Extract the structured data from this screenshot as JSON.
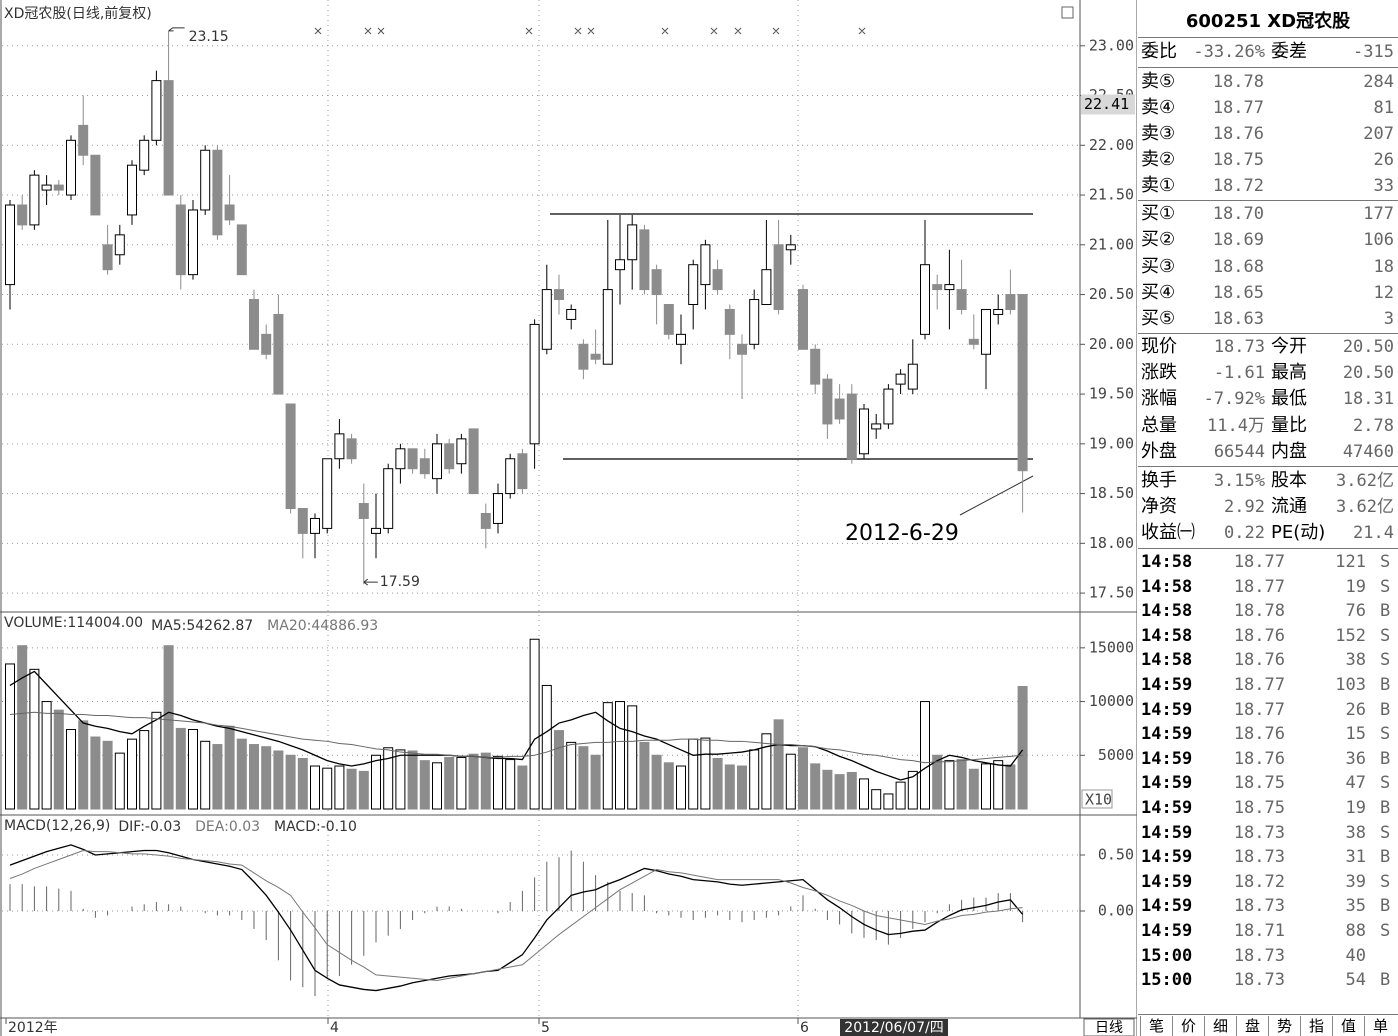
{
  "chart_data": [
    {
      "type": "candlestick",
      "title": "XD冠农股(日线,前复权)",
      "open": [
        20.6,
        21.4,
        21.2,
        21.55,
        21.6,
        21.5,
        22.2,
        21.9,
        21.0,
        20.9,
        21.3,
        21.75,
        22.05,
        22.65,
        21.4,
        20.7,
        21.35,
        21.95,
        21.4,
        21.2,
        20.45,
        20.1,
        20.3,
        19.4,
        18.35,
        18.1,
        18.15,
        18.85,
        19.05,
        18.4,
        18.1,
        18.15,
        18.75,
        18.95,
        18.85,
        18.65,
        19.0,
        18.8,
        19.15,
        18.3,
        18.2,
        18.5,
        18.9,
        19.0,
        19.95,
        20.55,
        20.25,
        20.0,
        19.9,
        19.8,
        20.75,
        20.85,
        21.15,
        20.75,
        20.4,
        20.0,
        20.4,
        20.6,
        20.75,
        20.35,
        20.0,
        20.0,
        20.4,
        21.0,
        20.95,
        20.55,
        19.95,
        19.65,
        19.45,
        19.5,
        18.9,
        19.15,
        19.2,
        19.6,
        19.55,
        20.1,
        20.6,
        20.55,
        20.55,
        20.05,
        19.9,
        20.3,
        20.5,
        20.5
      ],
      "high": [
        21.45,
        21.5,
        21.75,
        21.7,
        21.65,
        22.1,
        22.5,
        21.9,
        21.2,
        21.2,
        21.85,
        22.1,
        22.75,
        23.15,
        21.5,
        21.45,
        22.0,
        22.0,
        21.7,
        21.2,
        20.55,
        20.2,
        20.5,
        19.4,
        18.35,
        18.3,
        18.85,
        19.25,
        19.1,
        18.6,
        18.5,
        18.8,
        19.0,
        18.95,
        18.95,
        19.1,
        19.05,
        19.1,
        19.15,
        18.4,
        18.6,
        18.9,
        18.95,
        20.25,
        20.8,
        20.7,
        20.4,
        20.05,
        20.15,
        21.25,
        21.3,
        21.3,
        21.2,
        20.8,
        20.4,
        20.3,
        20.85,
        21.05,
        20.85,
        20.4,
        20.1,
        20.55,
        21.25,
        21.25,
        21.1,
        20.6,
        20.0,
        19.7,
        19.6,
        19.6,
        19.4,
        19.3,
        19.6,
        19.75,
        20.05,
        21.25,
        20.7,
        20.95,
        20.85,
        20.3,
        20.35,
        20.5,
        20.75,
        20.5
      ],
      "low": [
        20.35,
        21.15,
        21.15,
        21.4,
        21.5,
        21.45,
        21.8,
        21.3,
        20.7,
        20.8,
        21.2,
        21.7,
        22.0,
        21.5,
        20.55,
        20.65,
        21.3,
        21.05,
        21.2,
        20.7,
        19.95,
        19.85,
        19.5,
        18.3,
        17.85,
        17.85,
        18.1,
        18.75,
        18.8,
        17.59,
        17.85,
        18.1,
        18.6,
        18.7,
        18.65,
        18.5,
        18.7,
        18.7,
        18.5,
        17.95,
        18.1,
        18.45,
        18.5,
        18.75,
        19.9,
        20.3,
        20.15,
        19.65,
        19.8,
        19.8,
        20.4,
        20.55,
        20.5,
        20.2,
        20.05,
        19.8,
        20.15,
        20.35,
        20.5,
        19.85,
        19.45,
        19.95,
        20.4,
        20.3,
        20.8,
        19.95,
        19.5,
        19.05,
        19.2,
        18.8,
        18.85,
        19.05,
        19.15,
        19.5,
        19.5,
        20.05,
        20.35,
        20.15,
        20.3,
        19.95,
        19.55,
        20.2,
        20.3,
        18.31
      ],
      "close": [
        21.4,
        21.2,
        21.7,
        21.6,
        21.55,
        22.05,
        21.9,
        21.3,
        20.75,
        21.1,
        21.8,
        22.05,
        22.65,
        21.5,
        20.7,
        21.35,
        21.95,
        21.1,
        21.25,
        20.7,
        19.95,
        19.9,
        19.5,
        18.35,
        18.1,
        18.25,
        18.85,
        19.1,
        18.85,
        18.25,
        18.15,
        18.75,
        18.95,
        18.75,
        18.7,
        19.0,
        18.75,
        19.05,
        18.5,
        18.15,
        18.5,
        18.85,
        18.55,
        20.2,
        20.55,
        20.45,
        20.35,
        19.75,
        19.85,
        20.55,
        20.85,
        21.2,
        20.55,
        20.5,
        20.1,
        20.1,
        20.8,
        21.0,
        20.55,
        20.1,
        19.9,
        20.45,
        20.75,
        20.35,
        21.0,
        19.95,
        19.6,
        19.2,
        19.25,
        18.85,
        19.35,
        19.2,
        19.55,
        19.7,
        19.8,
        20.8,
        20.55,
        20.6,
        20.35,
        20.0,
        20.35,
        20.35,
        20.35,
        18.73
      ],
      "up_color": "#ffffff",
      "down_color": "#8c8c8c",
      "annotations": [
        23.15,
        17.59
      ],
      "note": "2012-6-29",
      "cursor": 22.41,
      "ylim": [
        17.31,
        23.46
      ],
      "yticks": [
        {
          "value": 17.5,
          "label": "17.50"
        },
        {
          "value": 18,
          "label": "18.00"
        },
        {
          "value": 18.5,
          "label": "18.50"
        },
        {
          "value": 19,
          "label": "19.00"
        },
        {
          "value": 19.5,
          "label": "19.50"
        },
        {
          "value": 20,
          "label": "20.00"
        },
        {
          "value": 20.5,
          "label": "20.50"
        },
        {
          "value": 21,
          "label": "21.00"
        },
        {
          "value": 21.5,
          "label": "21.50"
        },
        {
          "value": 22,
          "label": "22.00"
        },
        {
          "value": 22.5,
          "label": "22.50"
        },
        {
          "value": 23,
          "label": "23.00"
        }
      ],
      "grid": true,
      "x_labels": [
        "2012年",
        "4",
        "5",
        "6"
      ],
      "cursor_date": "2012/06/07/四",
      "period": "日线"
    },
    {
      "type": "bar",
      "title": "VOLUME:114004.00",
      "unit_label": "X10",
      "values": [
        13500,
        15200,
        13000,
        10000,
        9200,
        7400,
        8200,
        6700,
        6300,
        5200,
        6500,
        7300,
        9000,
        15200,
        7500,
        7400,
        6300,
        6000,
        7700,
        6500,
        6000,
        5800,
        5400,
        5000,
        4700,
        4000,
        3800,
        4000,
        3700,
        3500,
        5000,
        5700,
        5500,
        5400,
        4500,
        4300,
        4800,
        4800,
        5100,
        5200,
        4900,
        4600,
        4000,
        15800,
        11500,
        7300,
        6200,
        5800,
        5000,
        9900,
        10000,
        9600,
        6200,
        5000,
        4300,
        4000,
        6500,
        6600,
        4700,
        4100,
        4000,
        5500,
        7000,
        8300,
        5100,
        5700,
        4200,
        3600,
        3200,
        3400,
        2800,
        1800,
        1400,
        2500,
        3500,
        10000,
        5000,
        4500,
        4600,
        3700,
        4200,
        4500,
        4100,
        11400
      ],
      "series": [
        {
          "name": "MA5:54262.87",
          "color": "#000000",
          "values": [
            11500,
            12200,
            12800,
            11600,
            10400,
            9200,
            8000,
            7700,
            7500,
            7200,
            7000,
            7700,
            8300,
            9000,
            8700,
            8300,
            8000,
            7700,
            7500,
            7200,
            6900,
            6600,
            6300,
            5900,
            5500,
            5000,
            4500,
            4200,
            4000,
            4200,
            4500,
            4700,
            5000,
            5000,
            5000,
            5000,
            5000,
            4900,
            4900,
            4800,
            4700,
            4700,
            4600,
            6500,
            7200,
            8000,
            8300,
            8700,
            9000,
            8200,
            7500,
            7200,
            6800,
            6500,
            6000,
            5500,
            5000,
            5100,
            5100,
            5200,
            5300,
            5500,
            5800,
            6000,
            5900,
            5900,
            5800,
            5400,
            4900,
            4500,
            4000,
            3500,
            3100,
            2700,
            3000,
            3800,
            4500,
            5000,
            4800,
            4500,
            4300,
            4100,
            4000,
            5500
          ]
        },
        {
          "name": "MA20:44886.93",
          "color": "#666666",
          "values": [
            8800,
            8900,
            9000,
            8900,
            8900,
            8800,
            8800,
            8700,
            8700,
            8600,
            8500,
            8500,
            8400,
            8300,
            8200,
            8100,
            8000,
            7800,
            7700,
            7500,
            7300,
            7100,
            6900,
            6700,
            6500,
            6400,
            6300,
            6100,
            6000,
            5800,
            5600,
            5500,
            5300,
            5200,
            5100,
            5100,
            5000,
            4900,
            4900,
            4800,
            4800,
            4900,
            4900,
            5000,
            5300,
            5700,
            6000,
            6100,
            6200,
            6200,
            6300,
            6300,
            6400,
            6400,
            6400,
            6500,
            6500,
            6400,
            6400,
            6300,
            6300,
            6200,
            6100,
            6000,
            6000,
            5900,
            5800,
            5600,
            5500,
            5300,
            5100,
            5000,
            4800,
            4600,
            4500,
            4300,
            4400,
            4400,
            4500,
            4600,
            4700,
            4800,
            4900,
            5000
          ]
        }
      ],
      "ylim": [
        0,
        18150
      ],
      "yticks": [
        5000,
        10000,
        15000
      ],
      "grid": true
    },
    {
      "type": "line",
      "title": "MACD(12,26,9)",
      "series": [
        {
          "name": "DIF:-0.03",
          "color": "#000000",
          "values": [
            0.41,
            0.45,
            0.49,
            0.53,
            0.56,
            0.59,
            0.55,
            0.5,
            0.51,
            0.52,
            0.53,
            0.54,
            0.54,
            0.52,
            0.49,
            0.46,
            0.44,
            0.42,
            0.4,
            0.37,
            0.26,
            0.14,
            -0.01,
            -0.17,
            -0.35,
            -0.53,
            -0.6,
            -0.66,
            -0.68,
            -0.7,
            -0.71,
            -0.69,
            -0.67,
            -0.64,
            -0.62,
            -0.6,
            -0.58,
            -0.57,
            -0.56,
            -0.54,
            -0.53,
            -0.46,
            -0.39,
            -0.24,
            -0.08,
            0.03,
            0.14,
            0.17,
            0.19,
            0.24,
            0.28,
            0.33,
            0.38,
            0.36,
            0.33,
            0.31,
            0.28,
            0.27,
            0.26,
            0.24,
            0.23,
            0.24,
            0.25,
            0.26,
            0.27,
            0.28,
            0.19,
            0.1,
            0.03,
            -0.05,
            -0.12,
            -0.17,
            -0.21,
            -0.2,
            -0.18,
            -0.17,
            -0.1,
            -0.04,
            0.01,
            0.03,
            0.05,
            0.08,
            0.1,
            -0.03
          ]
        },
        {
          "name": "DEA:0.03",
          "color": "#777777",
          "values": [
            0.29,
            0.33,
            0.38,
            0.42,
            0.46,
            0.5,
            0.54,
            0.53,
            0.53,
            0.52,
            0.51,
            0.51,
            0.5,
            0.49,
            0.47,
            0.46,
            0.45,
            0.44,
            0.42,
            0.41,
            0.34,
            0.27,
            0.21,
            0.14,
            -0.01,
            -0.15,
            -0.3,
            -0.37,
            -0.44,
            -0.5,
            -0.57,
            -0.58,
            -0.59,
            -0.6,
            -0.61,
            -0.62,
            -0.6,
            -0.58,
            -0.56,
            -0.54,
            -0.52,
            -0.5,
            -0.48,
            -0.39,
            -0.3,
            -0.21,
            -0.13,
            -0.05,
            0.03,
            0.11,
            0.19,
            0.25,
            0.31,
            0.37,
            0.35,
            0.34,
            0.32,
            0.3,
            0.28,
            0.28,
            0.28,
            0.28,
            0.28,
            0.28,
            0.25,
            0.21,
            0.18,
            0.14,
            0.09,
            0.05,
            0,
            -0.04,
            -0.06,
            -0.08,
            -0.1,
            -0.12,
            -0.09,
            -0.07,
            -0.04,
            -0.03,
            -0.01,
            0,
            0.02,
            0.03
          ]
        }
      ],
      "histogram": {
        "name": "MACD:-0.10",
        "color": "#666666",
        "values": [
          0.24,
          0.24,
          0.22,
          0.22,
          0.2,
          0.18,
          0.02,
          -0.06,
          -0.04,
          0,
          0.04,
          0.06,
          0.08,
          0.06,
          0.04,
          0,
          -0.02,
          -0.04,
          -0.04,
          -0.08,
          -0.16,
          -0.26,
          -0.44,
          -0.62,
          -0.68,
          -0.76,
          -0.6,
          -0.58,
          -0.48,
          -0.4,
          -0.28,
          -0.22,
          -0.16,
          -0.08,
          -0.02,
          0.04,
          0.04,
          0.02,
          0,
          0,
          -0.02,
          0.08,
          0.18,
          0.3,
          0.44,
          0.48,
          0.54,
          0.44,
          0.32,
          0.26,
          0.18,
          0.16,
          0.14,
          -0.02,
          -0.04,
          -0.06,
          -0.08,
          -0.06,
          -0.04,
          -0.08,
          -0.1,
          -0.08,
          -0.06,
          -0.04,
          0.04,
          0.14,
          0.02,
          -0.08,
          -0.12,
          -0.2,
          -0.24,
          -0.26,
          -0.3,
          -0.24,
          -0.16,
          -0.1,
          -0.02,
          0.06,
          0.1,
          0.12,
          0.12,
          0.16,
          0.16,
          -0.1
        ]
      },
      "ylim": [
        -0.955,
        0.857
      ],
      "yticks": [
        {
          "value": 0,
          "label": "0.00"
        },
        {
          "value": 0.5,
          "label": "0.50"
        }
      ],
      "grid": true
    }
  ],
  "quote_panel": {
    "title": "600251 XD冠农股",
    "order_ratio": [
      "委比",
      "-33.26%",
      "委差",
      "-315"
    ],
    "asks": [
      [
        "卖⑤",
        "18.78",
        "284"
      ],
      [
        "卖④",
        "18.77",
        "81"
      ],
      [
        "卖③",
        "18.76",
        "207"
      ],
      [
        "卖②",
        "18.75",
        "26"
      ],
      [
        "卖①",
        "18.72",
        "33"
      ]
    ],
    "bids": [
      [
        "买①",
        "18.70",
        "177"
      ],
      [
        "买②",
        "18.69",
        "106"
      ],
      [
        "买③",
        "18.68",
        "18"
      ],
      [
        "买④",
        "18.65",
        "12"
      ],
      [
        "买⑤",
        "18.63",
        "3"
      ]
    ],
    "quotes": [
      [
        "现价",
        "18.73",
        "今开",
        "20.50"
      ],
      [
        "涨跌",
        "-1.61",
        "最高",
        "20.50"
      ],
      [
        "涨幅",
        "-7.92%",
        "最低",
        "18.31"
      ],
      [
        "总量",
        "11.4万",
        "量比",
        "2.78"
      ],
      [
        "外盘",
        "66544",
        "内盘",
        "47460"
      ]
    ],
    "stats": [
      [
        "换手",
        "3.15%",
        "股本",
        "3.62亿"
      ],
      [
        "净资",
        "2.92",
        "流通",
        "3.62亿"
      ],
      [
        "收益㈠",
        "0.22",
        "PE(动)",
        "21.4"
      ]
    ],
    "ticks": [
      [
        "14:58",
        "18.77",
        "121",
        "S"
      ],
      [
        "14:58",
        "18.77",
        "19",
        "S"
      ],
      [
        "14:58",
        "18.78",
        "76",
        "B"
      ],
      [
        "14:58",
        "18.76",
        "152",
        "S"
      ],
      [
        "14:58",
        "18.76",
        "38",
        "S"
      ],
      [
        "14:59",
        "18.77",
        "103",
        "B"
      ],
      [
        "14:59",
        "18.77",
        "26",
        "B"
      ],
      [
        "14:59",
        "18.76",
        "15",
        "S"
      ],
      [
        "14:59",
        "18.76",
        "36",
        "B"
      ],
      [
        "14:59",
        "18.75",
        "47",
        "S"
      ],
      [
        "14:59",
        "18.75",
        "19",
        "B"
      ],
      [
        "14:59",
        "18.73",
        "38",
        "S"
      ],
      [
        "14:59",
        "18.73",
        "31",
        "B"
      ],
      [
        "14:59",
        "18.72",
        "39",
        "S"
      ],
      [
        "14:59",
        "18.73",
        "35",
        "B"
      ],
      [
        "14:59",
        "18.71",
        "88",
        "S"
      ],
      [
        "15:00",
        "18.73",
        "40"
      ],
      [
        "15:00",
        "18.73",
        "54",
        "B"
      ]
    ],
    "tabs": [
      "笔",
      "价",
      "细",
      "盘",
      "势",
      "指",
      "值",
      "单"
    ]
  }
}
